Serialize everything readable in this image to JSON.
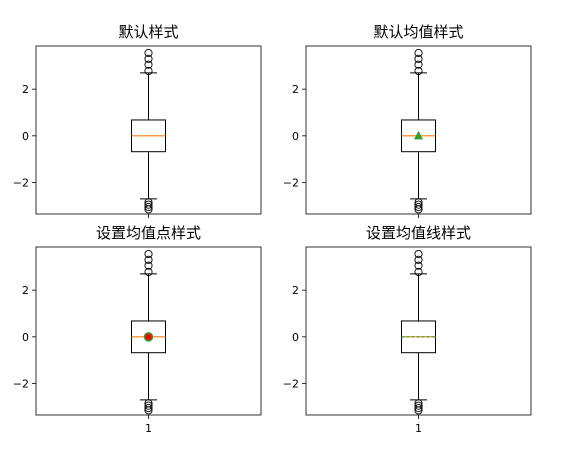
{
  "chart_data": [
    {
      "type": "boxplot",
      "title": "默认样式",
      "xlabel": "",
      "ylabel": "",
      "ylim": [
        -3.35,
        3.85
      ],
      "yticks": [
        -2,
        0,
        2
      ],
      "xticklabels": [],
      "box": {
        "q1": -0.68,
        "median": 0.0,
        "q3": 0.68,
        "whisker_low": -2.7,
        "whisker_high": 2.7
      },
      "fliers": [
        2.78,
        3.05,
        3.3,
        3.55,
        -2.85,
        -2.95,
        -3.05,
        -3.15
      ],
      "mean": null,
      "mean_style": "none",
      "colors": {
        "median": "#ff7f0e",
        "mean_marker": "#2ca02c",
        "mean_fill": "#ff0000"
      }
    },
    {
      "type": "boxplot",
      "title": "默认均值样式",
      "xlabel": "",
      "ylabel": "",
      "ylim": [
        -3.35,
        3.85
      ],
      "yticks": [
        -2,
        0,
        2
      ],
      "xticklabels": [],
      "box": {
        "q1": -0.68,
        "median": 0.0,
        "q3": 0.68,
        "whisker_low": -2.7,
        "whisker_high": 2.7
      },
      "fliers": [
        2.78,
        3.05,
        3.3,
        3.55,
        -2.85,
        -2.95,
        -3.05,
        -3.15
      ],
      "mean": 0.0,
      "mean_style": "triangle",
      "colors": {
        "median": "#ff7f0e",
        "mean_marker": "#2ca02c",
        "mean_fill": "#ff0000"
      }
    },
    {
      "type": "boxplot",
      "title": "设置均值点样式",
      "xlabel": "",
      "ylabel": "",
      "ylim": [
        -3.35,
        3.85
      ],
      "yticks": [
        -2,
        0,
        2
      ],
      "xticklabels": [
        "1"
      ],
      "box": {
        "q1": -0.68,
        "median": 0.0,
        "q3": 0.68,
        "whisker_low": -2.7,
        "whisker_high": 2.7
      },
      "fliers": [
        2.78,
        3.05,
        3.3,
        3.55,
        -2.85,
        -2.95,
        -3.05,
        -3.15
      ],
      "mean": 0.0,
      "mean_style": "dot",
      "colors": {
        "median": "#ff7f0e",
        "mean_marker": "#2ca02c",
        "mean_fill": "#ff0000"
      }
    },
    {
      "type": "boxplot",
      "title": "设置均值线样式",
      "xlabel": "",
      "ylabel": "",
      "ylim": [
        -3.35,
        3.85
      ],
      "yticks": [
        -2,
        0,
        2
      ],
      "xticklabels": [
        "1"
      ],
      "box": {
        "q1": -0.68,
        "median": 0.0,
        "q3": 0.68,
        "whisker_low": -2.7,
        "whisker_high": 2.7
      },
      "fliers": [
        2.78,
        3.05,
        3.3,
        3.55,
        -2.85,
        -2.95,
        -3.05,
        -3.15
      ],
      "mean": 0.0,
      "mean_style": "line",
      "colors": {
        "median": "#ff7f0e",
        "mean_marker": "#2ca02c",
        "mean_fill": "#ff0000"
      }
    }
  ]
}
